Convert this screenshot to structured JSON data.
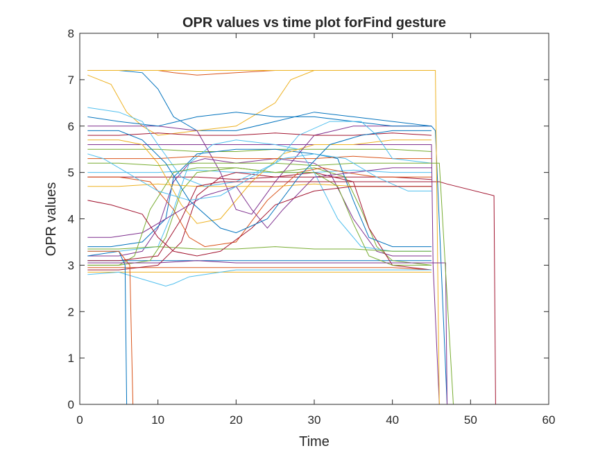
{
  "chart_data": {
    "type": "line",
    "title": "OPR values vs time plot forFind gesture",
    "xlabel": "Time",
    "ylabel": "OPR values",
    "xlim": [
      0,
      60
    ],
    "ylim": [
      0,
      8
    ],
    "xticks": [
      0,
      10,
      20,
      30,
      40,
      50,
      60
    ],
    "yticks": [
      0,
      1,
      2,
      3,
      4,
      5,
      6,
      7,
      8
    ],
    "grid": false,
    "legend": "none",
    "note_series": "Several hundred overlapping time series; values estimated from the figure. Most traces span t=1..45, with a few extending to ~47 and one to ~53-55 before dropping to 0.",
    "series_colors": [
      "#0072BD",
      "#D95319",
      "#EDB120",
      "#7E2F8E",
      "#77AC30",
      "#4DBEEE",
      "#A2142F"
    ],
    "series": [
      {
        "x": [
          1,
          5,
          8,
          10,
          12,
          15,
          20,
          25,
          30,
          35,
          40,
          45,
          45.5,
          47,
          55
        ],
        "y": [
          7.2,
          7.2,
          7.15,
          6.8,
          6.2,
          5.9,
          5.9,
          6.1,
          6.3,
          6.2,
          6.1,
          6.0,
          5.9,
          0,
          0
        ]
      },
      {
        "x": [
          1,
          5,
          10,
          12,
          15,
          20,
          25,
          28,
          30,
          35,
          40,
          45
        ],
        "y": [
          7.2,
          7.2,
          7.2,
          7.15,
          7.1,
          7.15,
          7.2,
          7.2,
          7.2,
          7.2,
          7.2,
          7.2
        ]
      },
      {
        "x": [
          1,
          4,
          6,
          8,
          10,
          15,
          20,
          25,
          27,
          30,
          35,
          40,
          45
        ],
        "y": [
          7.1,
          6.9,
          6.3,
          6.0,
          5.8,
          5.9,
          6.0,
          6.5,
          7.0,
          7.2,
          7.2,
          7.2,
          7.2
        ]
      },
      {
        "x": [
          1,
          5,
          10,
          15,
          20,
          25,
          30,
          35,
          40,
          45,
          45.2,
          46
        ],
        "y": [
          5.6,
          5.6,
          5.6,
          5.6,
          5.6,
          5.6,
          5.6,
          5.6,
          5.6,
          5.6,
          3.0,
          0
        ]
      },
      {
        "x": [
          1,
          5,
          10,
          15,
          20,
          25,
          30,
          35,
          40,
          45
        ],
        "y": [
          5.5,
          5.5,
          5.5,
          5.45,
          5.45,
          5.5,
          5.5,
          5.5,
          5.5,
          5.45
        ]
      },
      {
        "x": [
          1,
          5,
          10,
          15,
          20,
          25,
          30,
          35,
          40,
          45
        ],
        "y": [
          5.0,
          5.0,
          5.0,
          5.05,
          5.0,
          5.0,
          5.0,
          5.05,
          5.0,
          5.0
        ]
      },
      {
        "x": [
          1,
          5,
          10,
          15,
          20,
          25,
          30,
          35,
          40,
          45
        ],
        "y": [
          4.9,
          4.9,
          4.9,
          4.9,
          4.85,
          4.9,
          4.9,
          4.9,
          4.9,
          4.85
        ]
      },
      {
        "x": [
          1,
          5,
          10,
          15,
          20,
          25,
          30,
          35,
          40,
          45
        ],
        "y": [
          3.1,
          3.1,
          3.1,
          3.1,
          3.1,
          3.1,
          3.1,
          3.1,
          3.1,
          3.1
        ]
      },
      {
        "x": [
          1,
          5,
          10,
          15,
          20,
          25,
          30,
          35,
          40,
          45
        ],
        "y": [
          2.95,
          2.95,
          2.95,
          2.95,
          2.95,
          2.95,
          2.95,
          2.95,
          2.95,
          2.9
        ]
      },
      {
        "x": [
          1,
          5,
          10,
          15,
          20,
          25,
          30,
          35,
          40,
          45
        ],
        "y": [
          2.85,
          2.85,
          2.85,
          2.85,
          2.85,
          2.85,
          2.85,
          2.85,
          2.85,
          2.85
        ]
      },
      {
        "x": [
          1,
          5,
          8,
          10,
          12,
          14,
          16,
          20,
          25,
          30,
          32,
          35,
          38,
          40,
          45
        ],
        "y": [
          3.2,
          3.2,
          3.3,
          3.8,
          4.8,
          5.2,
          5.3,
          5.2,
          5.3,
          5.2,
          5.0,
          4.0,
          3.3,
          3.2,
          3.2
        ]
      },
      {
        "x": [
          1,
          5,
          9,
          11,
          13,
          15,
          20,
          25,
          30,
          34,
          36,
          38,
          40,
          45
        ],
        "y": [
          3.0,
          3.0,
          3.1,
          3.6,
          4.6,
          5.0,
          5.1,
          5.0,
          5.1,
          4.9,
          4.2,
          3.4,
          3.1,
          3.0
        ]
      },
      {
        "x": [
          1,
          5,
          10,
          12,
          14,
          17,
          20,
          25,
          28,
          30,
          33,
          36,
          40,
          45
        ],
        "y": [
          3.3,
          3.3,
          3.4,
          4.2,
          5.2,
          5.6,
          5.7,
          5.6,
          5.5,
          5.0,
          4.0,
          3.4,
          3.3,
          3.3
        ]
      },
      {
        "x": [
          1,
          5,
          10,
          13,
          15,
          18,
          20,
          25,
          30,
          35,
          37,
          40,
          45
        ],
        "y": [
          2.9,
          2.9,
          3.0,
          3.5,
          4.5,
          4.9,
          5.0,
          4.9,
          5.0,
          4.8,
          3.8,
          3.0,
          2.9
        ]
      },
      {
        "x": [
          1,
          4,
          8,
          11,
          12,
          15,
          20,
          25,
          30,
          33,
          35,
          37,
          40,
          45
        ],
        "y": [
          3.4,
          3.4,
          3.5,
          4.0,
          4.9,
          5.4,
          5.5,
          5.5,
          5.4,
          5.3,
          4.4,
          3.6,
          3.4,
          3.4
        ]
      },
      {
        "x": [
          1,
          5,
          9,
          12,
          14,
          16,
          20,
          24,
          28,
          31,
          34,
          38,
          42,
          45
        ],
        "y": [
          4.9,
          4.9,
          4.8,
          4.2,
          3.6,
          3.4,
          3.5,
          4.4,
          5.0,
          5.1,
          5.0,
          4.9,
          4.9,
          4.9
        ]
      },
      {
        "x": [
          1,
          5,
          8,
          10,
          13,
          15,
          18,
          22,
          26,
          30,
          35,
          40,
          45
        ],
        "y": [
          5.7,
          5.7,
          5.6,
          5.2,
          4.3,
          3.9,
          4.0,
          4.8,
          5.4,
          5.6,
          5.6,
          5.7,
          5.7
        ]
      },
      {
        "x": [
          1,
          5,
          10,
          15,
          18,
          20,
          22,
          25,
          30,
          35,
          40,
          45
        ],
        "y": [
          6.0,
          6.0,
          6.0,
          5.9,
          5.0,
          4.2,
          4.1,
          4.8,
          5.8,
          6.0,
          6.0,
          6.0
        ]
      },
      {
        "x": [
          1,
          5,
          10,
          15,
          20,
          25,
          30,
          35,
          40,
          45
        ],
        "y": [
          3.35,
          3.35,
          3.4,
          3.35,
          3.35,
          3.4,
          3.35,
          3.35,
          3.3,
          3.3
        ]
      },
      {
        "x": [
          1,
          5,
          10,
          11,
          12,
          14,
          16,
          18,
          20,
          25,
          30,
          35,
          40,
          45
        ],
        "y": [
          2.8,
          2.85,
          2.6,
          2.55,
          2.6,
          2.75,
          2.8,
          2.85,
          2.9,
          2.9,
          2.9,
          2.9,
          2.9,
          2.9
        ]
      },
      {
        "x": [
          1,
          5,
          10,
          15,
          20,
          25,
          30,
          35,
          40,
          45
        ],
        "y": [
          5.8,
          5.8,
          5.85,
          5.8,
          5.8,
          5.85,
          5.8,
          5.8,
          5.85,
          5.8
        ]
      },
      {
        "x": [
          1,
          5,
          10,
          15,
          20,
          25,
          30,
          35,
          40,
          45
        ],
        "y": [
          6.2,
          6.1,
          6.0,
          6.2,
          6.3,
          6.2,
          6.2,
          6.1,
          6.0,
          6.0
        ]
      },
      {
        "x": [
          1,
          5,
          10,
          15,
          20,
          25,
          30,
          35,
          40,
          45
        ],
        "y": [
          5.3,
          5.3,
          5.3,
          5.35,
          5.3,
          5.3,
          5.3,
          5.35,
          5.3,
          5.3
        ]
      },
      {
        "x": [
          1,
          5,
          10,
          15,
          20,
          25,
          30,
          35,
          40,
          45
        ],
        "y": [
          4.7,
          4.7,
          4.75,
          4.7,
          4.7,
          4.7,
          4.75,
          4.7,
          4.7,
          4.7
        ]
      },
      {
        "x": [
          1,
          4,
          8,
          12,
          16,
          20,
          22,
          24,
          26,
          30,
          35,
          40,
          45
        ],
        "y": [
          3.6,
          3.6,
          3.7,
          4.1,
          4.5,
          4.7,
          4.2,
          3.8,
          4.2,
          4.9,
          5.0,
          5.1,
          5.1
        ]
      },
      {
        "x": [
          1,
          5,
          7,
          9,
          12,
          15,
          20,
          25,
          30,
          33,
          35,
          37,
          40,
          45
        ],
        "y": [
          3.0,
          3.0,
          3.2,
          4.2,
          5.0,
          5.1,
          5.1,
          5.0,
          5.0,
          4.7,
          3.9,
          3.2,
          3.0,
          3.0
        ]
      },
      {
        "x": [
          1,
          5,
          8,
          10,
          13,
          16,
          20,
          25,
          28,
          32,
          36,
          38,
          40,
          45
        ],
        "y": [
          6.4,
          6.3,
          6.1,
          5.6,
          4.9,
          4.7,
          4.8,
          5.2,
          5.8,
          6.1,
          6.1,
          5.8,
          5.3,
          5.2
        ]
      },
      {
        "x": [
          1,
          5,
          10,
          13,
          15,
          18,
          20,
          25,
          30,
          35,
          40,
          45,
          46,
          47,
          53,
          53.2,
          55
        ],
        "y": [
          3.1,
          3.1,
          3.2,
          4.0,
          4.7,
          4.8,
          4.8,
          4.8,
          4.8,
          4.8,
          4.8,
          4.8,
          4.8,
          4.75,
          4.5,
          0,
          0
        ]
      },
      {
        "x": [
          1,
          5,
          5.8,
          6,
          45
        ],
        "y": [
          3.2,
          3.3,
          3.0,
          0,
          0
        ]
      },
      {
        "x": [
          1,
          5,
          6.4,
          6.8,
          45
        ],
        "y": [
          3.3,
          3.3,
          3.0,
          0,
          0
        ]
      },
      {
        "x": [
          1,
          5,
          10,
          15,
          20,
          25,
          30,
          35,
          40,
          45,
          45.5,
          46
        ],
        "y": [
          7.2,
          7.2,
          7.2,
          7.2,
          7.2,
          7.2,
          7.2,
          7.2,
          7.2,
          7.2,
          7.2,
          0
        ]
      },
      {
        "x": [
          1,
          5,
          10,
          15,
          20,
          25,
          30,
          35,
          40,
          45,
          46.8,
          47
        ],
        "y": [
          3.05,
          3.05,
          3.05,
          3.1,
          3.05,
          3.05,
          3.05,
          3.05,
          3.05,
          3.05,
          3.05,
          0
        ]
      },
      {
        "x": [
          1,
          5,
          10,
          15,
          20,
          25,
          30,
          35,
          40,
          45,
          46,
          47.8
        ],
        "y": [
          5.2,
          5.2,
          5.15,
          5.2,
          5.2,
          5.2,
          5.15,
          5.2,
          5.2,
          5.2,
          5.2,
          0
        ]
      },
      {
        "x": [
          1,
          3,
          6,
          10,
          14,
          18,
          22,
          26,
          30,
          34,
          38,
          42,
          45
        ],
        "y": [
          5.4,
          5.3,
          5.0,
          4.6,
          4.4,
          4.5,
          4.9,
          5.3,
          5.4,
          5.3,
          4.9,
          4.6,
          4.6
        ]
      },
      {
        "x": [
          1,
          4,
          8,
          10,
          12,
          15,
          18,
          22,
          25,
          30,
          35,
          40,
          45
        ],
        "y": [
          4.4,
          4.3,
          4.1,
          3.6,
          3.3,
          3.2,
          3.3,
          3.8,
          4.3,
          4.6,
          4.7,
          4.7,
          4.7
        ]
      },
      {
        "x": [
          1,
          5,
          8,
          11,
          14,
          18,
          20,
          24,
          28,
          32,
          36,
          40,
          45
        ],
        "y": [
          5.9,
          5.9,
          5.7,
          5.2,
          4.4,
          3.8,
          3.7,
          4.0,
          4.9,
          5.6,
          5.8,
          5.9,
          5.9
        ]
      }
    ]
  }
}
